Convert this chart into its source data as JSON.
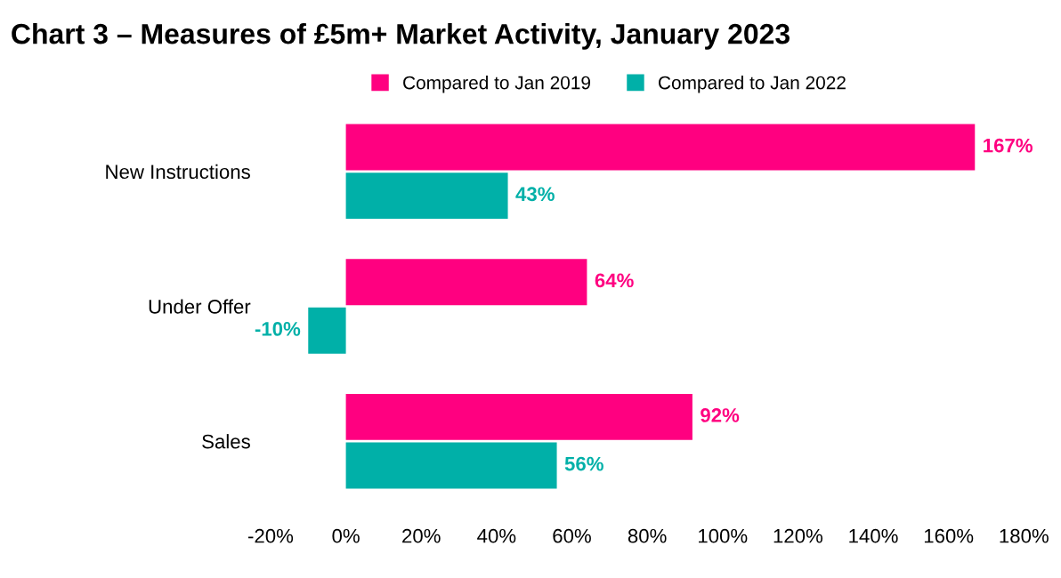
{
  "chart_data": {
    "type": "bar",
    "orientation": "horizontal",
    "title": "Chart 3 – Measures of £5m+ Market Activity, January 2023",
    "categories": [
      "New Instructions",
      "Under Offer",
      "Sales"
    ],
    "series": [
      {
        "name": "Compared to Jan 2019",
        "color": "#ff0080",
        "values": [
          167,
          64,
          92
        ],
        "value_labels": [
          "167%",
          "64%",
          "92%"
        ]
      },
      {
        "name": "Compared to Jan 2022",
        "color": "#00b0a8",
        "values": [
          43,
          -10,
          56
        ],
        "value_labels": [
          "43%",
          "-10%",
          "56%"
        ]
      }
    ],
    "xlim": [
      -20,
      180
    ],
    "xticks": [
      {
        "value": -20,
        "label": "-20%"
      },
      {
        "value": 0,
        "label": "0%"
      },
      {
        "value": 20,
        "label": "20%"
      },
      {
        "value": 40,
        "label": "40%"
      },
      {
        "value": 60,
        "label": "60%"
      },
      {
        "value": 80,
        "label": "80%"
      },
      {
        "value": 100,
        "label": "100%"
      },
      {
        "value": 120,
        "label": "120%"
      },
      {
        "value": 140,
        "label": "140%"
      },
      {
        "value": 160,
        "label": "160%"
      },
      {
        "value": 180,
        "label": "180%"
      }
    ],
    "grid": false,
    "legend": "top"
  }
}
